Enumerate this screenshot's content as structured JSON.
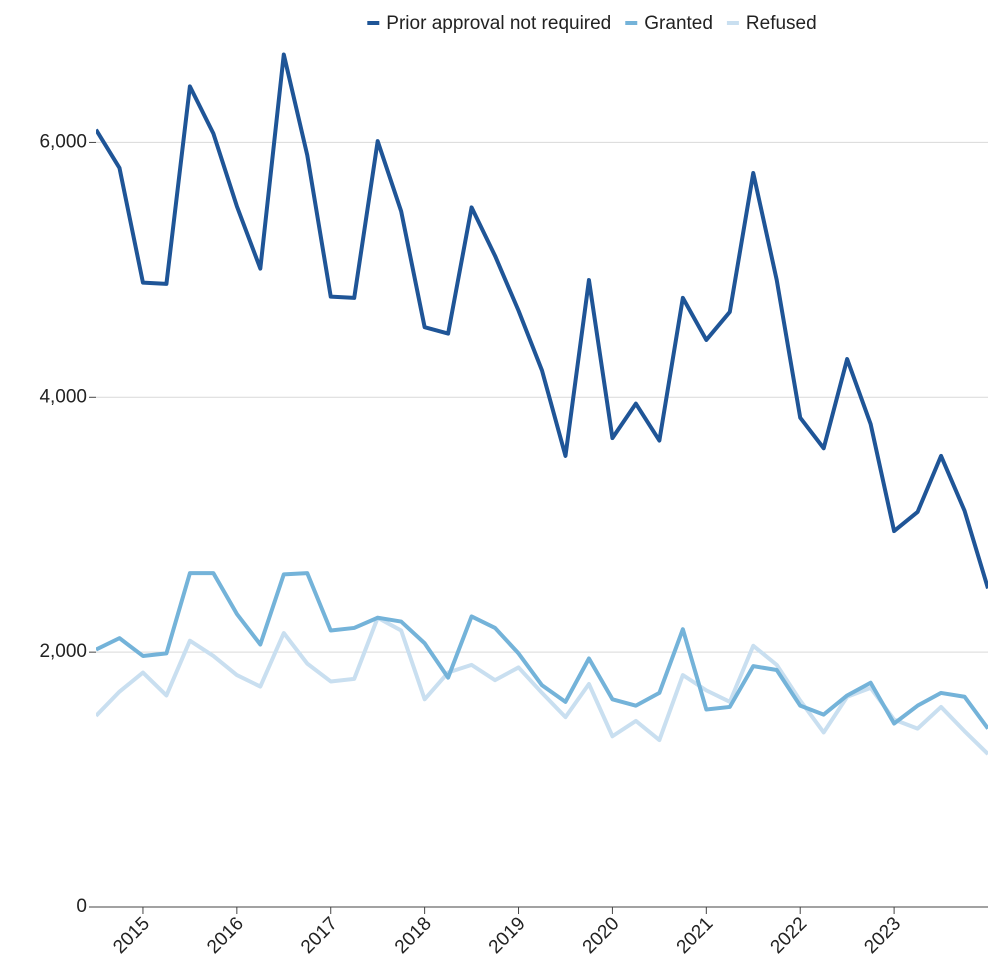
{
  "chart_data": {
    "type": "line",
    "x": [
      2014.5,
      2014.75,
      2015,
      2015.25,
      2015.5,
      2015.75,
      2016,
      2016.25,
      2016.5,
      2016.75,
      2017,
      2017.25,
      2017.5,
      2017.75,
      2018,
      2018.25,
      2018.5,
      2018.75,
      2019,
      2019.25,
      2019.5,
      2019.75,
      2020,
      2020.25,
      2020.5,
      2020.75,
      2021,
      2021.25,
      2021.5,
      2021.75,
      2022,
      2022.25,
      2022.5,
      2022.75,
      2023,
      2023.25,
      2023.5,
      2023.75,
      2024
    ],
    "series": [
      {
        "name": "Prior approval not required",
        "color": "#1f5597",
        "values": [
          6100,
          5800,
          4900,
          4890,
          6440,
          6070,
          5500,
          5010,
          6690,
          5900,
          4790,
          4780,
          6010,
          5460,
          4550,
          4500,
          5490,
          5110,
          4680,
          4210,
          3540,
          4920,
          3680,
          3950,
          3660,
          4780,
          4450,
          4670,
          5760,
          4920,
          3840,
          3600,
          4300,
          3790,
          2950,
          3100,
          3540,
          3110,
          2500
        ]
      },
      {
        "name": "Granted",
        "color": "#74b3d9",
        "values": [
          2020,
          2110,
          1970,
          1990,
          2620,
          2620,
          2300,
          2060,
          2610,
          2620,
          2170,
          2190,
          2270,
          2240,
          2070,
          1800,
          2280,
          2190,
          1990,
          1740,
          1610,
          1950,
          1630,
          1580,
          1680,
          2180,
          1550,
          1570,
          1890,
          1860,
          1580,
          1510,
          1660,
          1760,
          1440,
          1580,
          1680,
          1650,
          1400
        ]
      },
      {
        "name": "Refused",
        "color": "#c9dff0",
        "values": [
          1500,
          1690,
          1840,
          1660,
          2090,
          1970,
          1820,
          1730,
          2150,
          1910,
          1770,
          1790,
          2270,
          2170,
          1630,
          1840,
          1900,
          1780,
          1880,
          1680,
          1490,
          1750,
          1340,
          1460,
          1310,
          1820,
          1700,
          1610,
          2050,
          1900,
          1620,
          1370,
          1650,
          1720,
          1470,
          1400,
          1570,
          1380,
          1200
        ]
      }
    ],
    "xlim": [
      2014.5,
      2024
    ],
    "xticks": [
      2015,
      2016,
      2017,
      2018,
      2019,
      2020,
      2021,
      2022,
      2023
    ],
    "ylim": [
      0,
      7000
    ],
    "yticks": [
      0,
      {
        "value": 2000,
        "label": "2,000"
      },
      {
        "value": 4000,
        "label": "4,000"
      },
      {
        "value": 6000,
        "label": "6,000"
      }
    ],
    "grid": true,
    "legend": "top"
  }
}
